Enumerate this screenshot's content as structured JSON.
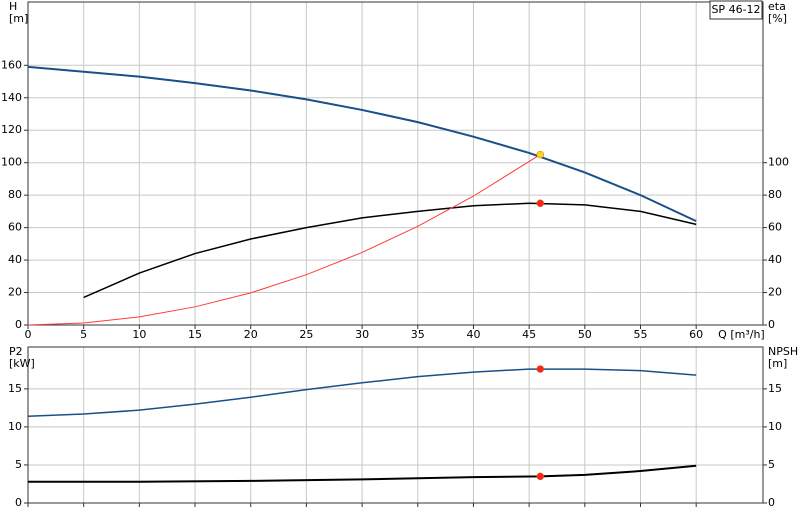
{
  "chart_data": [
    {
      "type": "line",
      "label": "SP 46-12",
      "y_label": "H",
      "y_unit": "[m]",
      "y2_label": "eta",
      "y2_unit": "[%]",
      "x_label": "Q [m³/h]",
      "xlim": [
        0,
        66
      ],
      "xticks": [
        0,
        5,
        10,
        15,
        20,
        25,
        30,
        35,
        40,
        45,
        50,
        55,
        60
      ],
      "xtick_labels": true,
      "ylim": [
        0,
        199
      ],
      "yticks": [
        0,
        20,
        40,
        60,
        80,
        100,
        120,
        140,
        160
      ],
      "y2lim": [
        0,
        199
      ],
      "y2ticks": [
        0,
        20,
        40,
        60,
        80,
        100
      ],
      "grid": true,
      "series": [
        {
          "kind": "line",
          "color": "#1b4f8a",
          "width": 2,
          "x": [
            0,
            5,
            10,
            15,
            20,
            25,
            30,
            35,
            40,
            45,
            50,
            55,
            60
          ],
          "values": [
            159,
            156,
            153,
            149,
            144.5,
            139,
            132.5,
            125,
            116,
            106,
            94,
            80,
            64
          ]
        },
        {
          "kind": "line",
          "color": "#000000",
          "width": 1.5,
          "axis": "y2",
          "x": [
            5,
            10,
            15,
            20,
            25,
            30,
            35,
            40,
            45,
            50,
            55,
            60
          ],
          "values": [
            17,
            32,
            44,
            53,
            60,
            66,
            70,
            73.5,
            75,
            74,
            70,
            62
          ]
        },
        {
          "kind": "line",
          "color": "#ff3b3b",
          "width": 1,
          "x": [
            0,
            5,
            10,
            15,
            20,
            25,
            30,
            35,
            40,
            46
          ],
          "values": [
            0,
            1.2,
            5,
            11.2,
            19.8,
            31,
            44.7,
            60.8,
            79.4,
            105
          ]
        },
        {
          "kind": "point",
          "color": "#ffd21a",
          "x": [
            46
          ],
          "values": [
            105
          ]
        },
        {
          "kind": "point",
          "color": "#ff2020",
          "axis": "y2",
          "x": [
            46
          ],
          "values": [
            75
          ]
        }
      ]
    },
    {
      "type": "line",
      "y_label": "P2",
      "y_unit": "[kW]",
      "y2_label": "NPSH",
      "y2_unit": "[m]",
      "xlim": [
        0,
        66
      ],
      "xticks": [
        0,
        5,
        10,
        15,
        20,
        25,
        30,
        35,
        40,
        45,
        50,
        55,
        60
      ],
      "xtick_labels": false,
      "ylim": [
        0,
        20.5
      ],
      "yticks": [
        0,
        5,
        10,
        15
      ],
      "y2lim": [
        0,
        20.5
      ],
      "y2ticks": [
        0,
        5,
        10,
        15
      ],
      "grid": true,
      "series": [
        {
          "kind": "line",
          "color": "#1b4f8a",
          "width": 1.5,
          "x": [
            0,
            5,
            10,
            15,
            20,
            25,
            30,
            35,
            40,
            45,
            50,
            55,
            60
          ],
          "values": [
            11.4,
            11.7,
            12.2,
            13,
            13.9,
            14.9,
            15.8,
            16.6,
            17.2,
            17.6,
            17.6,
            17.4,
            16.8
          ]
        },
        {
          "kind": "line",
          "color": "#000000",
          "width": 2,
          "axis": "y2",
          "x": [
            0,
            10,
            20,
            30,
            40,
            46,
            50,
            55,
            60
          ],
          "values": [
            2.8,
            2.8,
            2.9,
            3.1,
            3.4,
            3.5,
            3.7,
            4.2,
            4.9
          ]
        },
        {
          "kind": "point",
          "color": "#ff2020",
          "x": [
            46
          ],
          "values": [
            17.6
          ]
        },
        {
          "kind": "point",
          "color": "#ff2020",
          "axis": "y2",
          "x": [
            46
          ],
          "values": [
            3.5
          ]
        }
      ]
    }
  ]
}
